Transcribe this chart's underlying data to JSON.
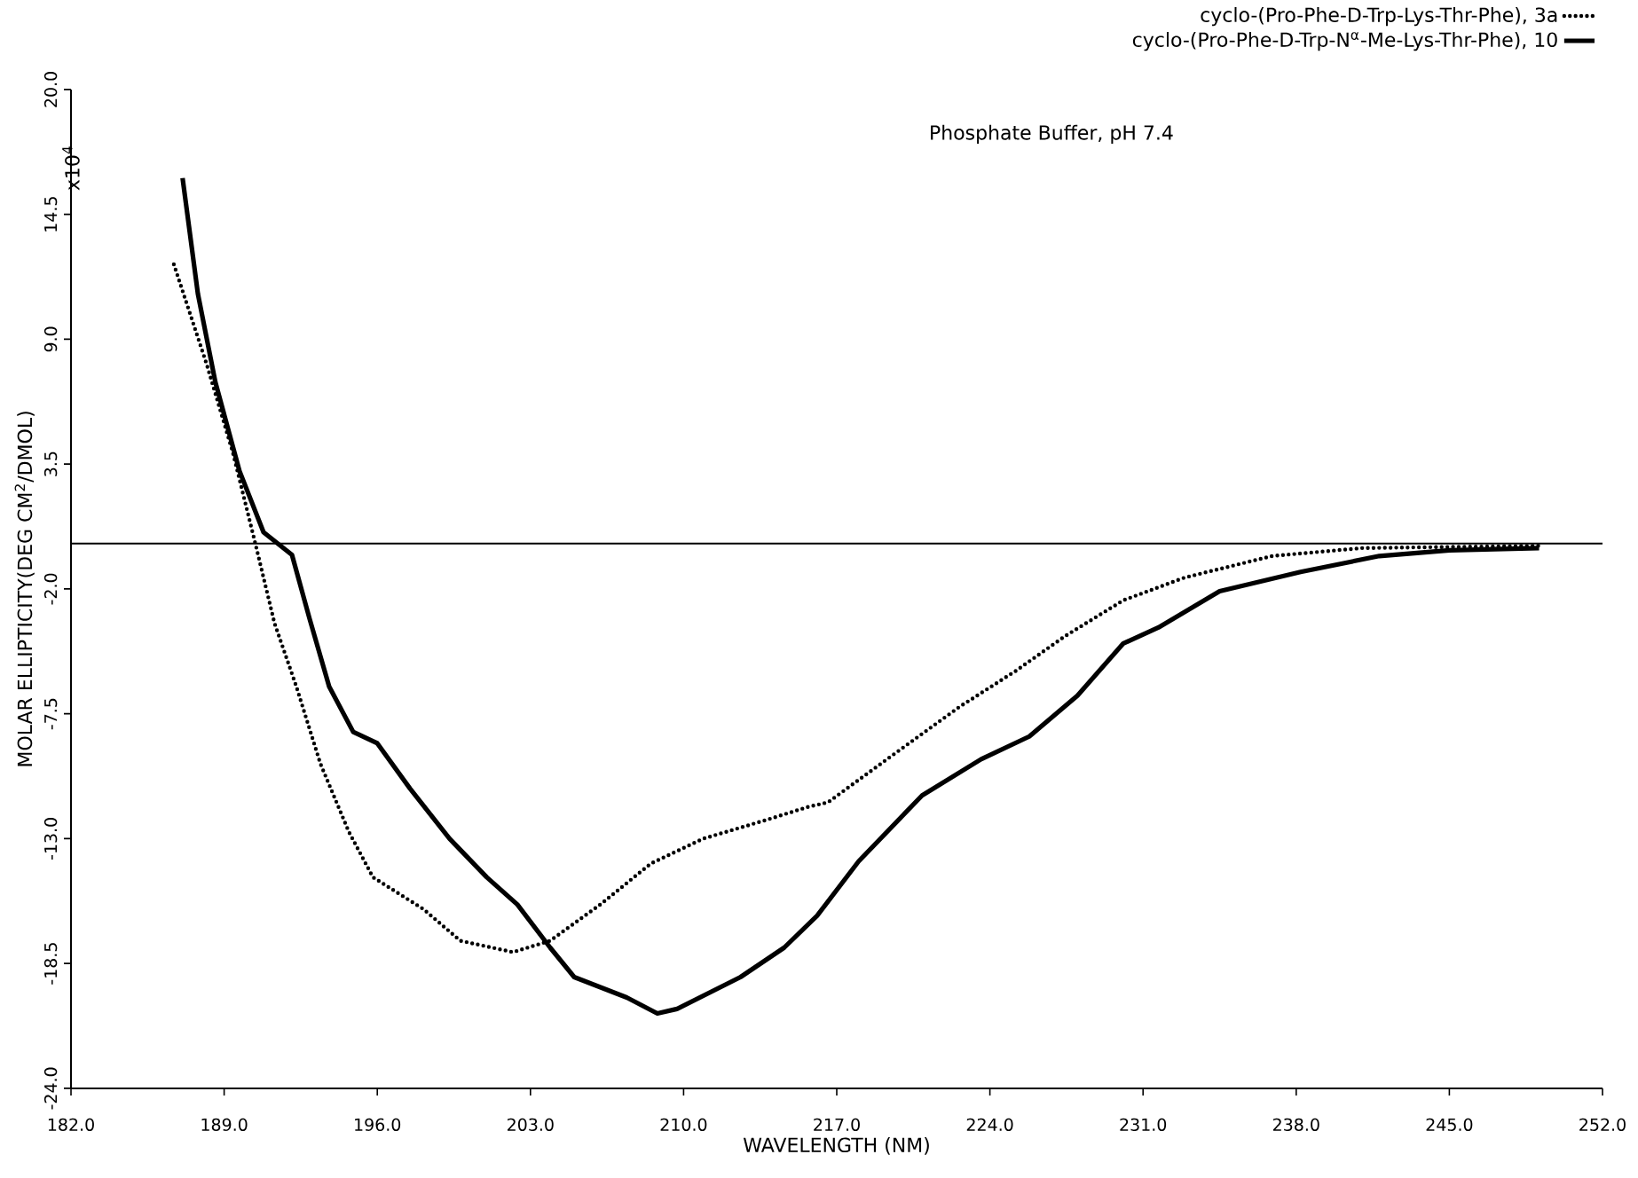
{
  "chart_data": {
    "type": "line",
    "xlabel": "WAVELENGTH (NM)",
    "ylabel": "MOLAR ELLIPTICITY(DEG CM$^{2}$/DMOL)",
    "annotations": [
      "x10$^{4}$",
      "Phosphate Buffer, pH 7.4"
    ],
    "xlim": [
      182,
      252
    ],
    "ylim": [
      -24,
      20
    ],
    "xticks": [
      {
        "value": 182,
        "label": "182.0"
      },
      {
        "value": 189,
        "label": "189.0"
      },
      {
        "value": 196,
        "label": "196.0"
      },
      {
        "value": 203,
        "label": "203.0"
      },
      {
        "value": 210,
        "label": "210.0"
      },
      {
        "value": 217,
        "label": "217.0"
      },
      {
        "value": 224,
        "label": "224.0"
      },
      {
        "value": 231,
        "label": "231.0"
      },
      {
        "value": 238,
        "label": "238.0"
      },
      {
        "value": 245,
        "label": "245.0"
      },
      {
        "value": 252,
        "label": "252.0"
      }
    ],
    "yticks": [
      {
        "value": -24,
        "label": "-24.0"
      },
      {
        "value": -18.5,
        "label": "-18.5"
      },
      {
        "value": -13,
        "label": "-13.0"
      },
      {
        "value": -7.5,
        "label": "-7.5"
      },
      {
        "value": -2,
        "label": "-2.0"
      },
      {
        "value": 3.5,
        "label": "3.5"
      },
      {
        "value": 9,
        "label": "9.0"
      },
      {
        "value": 14.5,
        "label": "14.5"
      },
      {
        "value": 20,
        "label": "20.0"
      }
    ],
    "ref_lines": [
      {
        "axis": "y",
        "value": 0,
        "color": "#000000"
      }
    ],
    "legend": "top right",
    "marker": "none",
    "series": [
      {
        "name": "cyclo-(Pro-Phe-D-Trp-Lys-Thr-Phe), 3a",
        "color": "#000000",
        "line_style": "dotted",
        "x": [
          186.7,
          188.2,
          189.4,
          190.4,
          191.3,
          192.3,
          193.4,
          194.7,
          195.8,
          198.1,
          199.8,
          202.2,
          203.9,
          206.2,
          208.5,
          210.9,
          213.7,
          215.7,
          216.6,
          219.3,
          222.6,
          225.2,
          227.4,
          230.1,
          232.9,
          236.9,
          241.0,
          249.1
        ],
        "values": [
          12.3,
          7.9,
          4.0,
          0.1,
          -3.5,
          -6.3,
          -9.7,
          -12.7,
          -14.7,
          -16.1,
          -17.5,
          -18.0,
          -17.5,
          -15.9,
          -14.1,
          -13.0,
          -12.2,
          -11.6,
          -11.4,
          -9.5,
          -7.2,
          -5.6,
          -4.1,
          -2.5,
          -1.5,
          -0.55,
          -0.2,
          -0.1
        ]
      },
      {
        "name": "cyclo-(Pro-Phe-D-Trp-N$^{α}$-Me-Lys-Thr-Phe), 10",
        "color": "#000000",
        "line_style": "solid",
        "x": [
          187.1,
          187.8,
          188.6,
          189.7,
          190.8,
          192.1,
          192.9,
          193.8,
          194.9,
          196.0,
          197.5,
          199.3,
          201.0,
          202.4,
          203.9,
          205.0,
          207.4,
          208.8,
          209.7,
          212.6,
          214.6,
          216.1,
          218.0,
          220.9,
          223.6,
          225.8,
          228.0,
          230.1,
          231.7,
          234.5,
          238.2,
          241.8,
          245.0,
          249.1
        ],
        "values": [
          16.1,
          11.0,
          7.1,
          3.2,
          0.5,
          -0.5,
          -3.3,
          -6.3,
          -8.3,
          -8.8,
          -10.8,
          -13.0,
          -14.7,
          -15.9,
          -17.8,
          -19.1,
          -20.0,
          -20.7,
          -20.5,
          -19.1,
          -17.8,
          -16.4,
          -14.0,
          -11.1,
          -9.5,
          -8.5,
          -6.7,
          -4.4,
          -3.7,
          -2.1,
          -1.25,
          -0.55,
          -0.3,
          -0.2
        ]
      }
    ]
  }
}
